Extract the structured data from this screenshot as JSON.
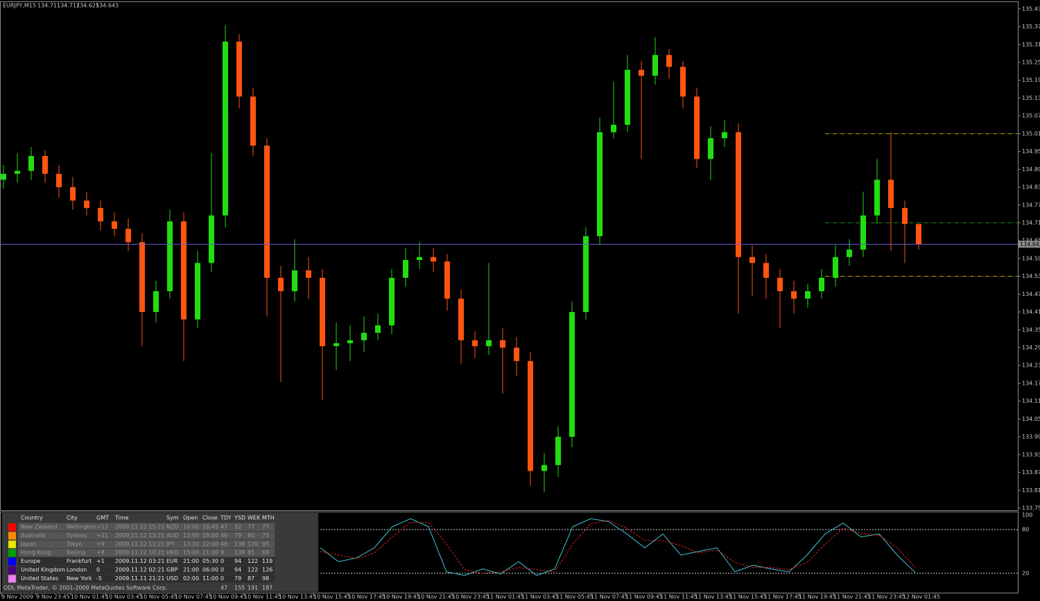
{
  "chart_data": [
    {
      "type": "candlestick",
      "title": "EURJPY,M15",
      "open": [
        134.86,
        134.88,
        134.89,
        134.94,
        134.88,
        134.835,
        134.79,
        134.765,
        134.72,
        134.695,
        134.65,
        134.415,
        134.485,
        134.72,
        134.39,
        134.58,
        134.74,
        135.325,
        135.14,
        134.975,
        134.53,
        134.485,
        134.555,
        134.53,
        134.3,
        134.31,
        134.32,
        134.345,
        134.37,
        134.53,
        134.59,
        134.6,
        134.585,
        134.46,
        134.32,
        134.3,
        134.32,
        134.295,
        134.25,
        133.88,
        133.9,
        133.995,
        134.415,
        134.67,
        135.02,
        135.045,
        135.23,
        135.21,
        135.28,
        135.24,
        135.14,
        134.93,
        135.0,
        135.02,
        134.6,
        134.58,
        134.53,
        134.485,
        134.46,
        134.485,
        134.53,
        134.6,
        134.625,
        134.74,
        134.86,
        134.765,
        134.711
      ],
      "high": [
        134.91,
        134.95,
        134.97,
        134.96,
        134.91,
        134.87,
        134.82,
        134.79,
        134.75,
        134.73,
        134.68,
        134.52,
        134.76,
        134.75,
        134.62,
        134.95,
        135.38,
        135.35,
        135.17,
        135.0,
        134.57,
        134.66,
        134.6,
        134.56,
        134.38,
        134.37,
        134.4,
        134.41,
        134.56,
        134.63,
        134.65,
        134.63,
        134.61,
        134.49,
        134.35,
        134.58,
        134.36,
        134.33,
        134.28,
        133.94,
        134.03,
        134.45,
        134.7,
        135.07,
        135.19,
        135.28,
        135.26,
        135.34,
        135.3,
        135.26,
        135.17,
        135.04,
        135.06,
        135.05,
        134.64,
        134.61,
        134.56,
        134.52,
        134.51,
        134.56,
        134.64,
        134.66,
        134.82,
        134.93,
        135.02,
        134.79,
        134.712
      ],
      "low": [
        134.83,
        134.85,
        134.86,
        134.85,
        134.8,
        134.76,
        134.74,
        134.69,
        134.67,
        134.62,
        134.3,
        134.38,
        134.46,
        134.25,
        134.36,
        134.55,
        134.7,
        135.1,
        134.94,
        134.4,
        134.18,
        134.45,
        134.46,
        134.12,
        134.22,
        134.25,
        134.28,
        134.32,
        134.34,
        134.5,
        134.56,
        134.55,
        134.42,
        134.24,
        134.26,
        134.27,
        134.14,
        134.2,
        133.83,
        133.81,
        133.86,
        133.96,
        134.39,
        134.64,
        135.0,
        135.02,
        134.93,
        135.18,
        135.2,
        135.1,
        134.9,
        134.86,
        134.97,
        134.41,
        134.47,
        134.46,
        134.36,
        134.41,
        134.43,
        134.46,
        134.5,
        134.57,
        134.6,
        134.71,
        134.62,
        134.58,
        134.625
      ],
      "close": [
        134.88,
        134.89,
        134.94,
        134.88,
        134.835,
        134.79,
        134.765,
        134.72,
        134.695,
        134.65,
        134.415,
        134.485,
        134.72,
        134.39,
        134.58,
        134.74,
        135.325,
        135.14,
        134.975,
        134.53,
        134.485,
        134.555,
        134.53,
        134.3,
        134.31,
        134.32,
        134.345,
        134.37,
        134.53,
        134.59,
        134.6,
        134.585,
        134.46,
        134.32,
        134.3,
        134.32,
        134.295,
        134.25,
        133.88,
        133.9,
        133.995,
        134.415,
        134.67,
        135.02,
        135.045,
        135.23,
        135.21,
        135.28,
        135.24,
        135.14,
        134.93,
        135.0,
        135.02,
        134.6,
        134.58,
        134.53,
        134.485,
        134.46,
        134.485,
        134.53,
        134.6,
        134.625,
        134.74,
        134.86,
        134.765,
        134.711,
        134.643
      ],
      "colors": {
        "up": "#22dd11",
        "down": "#ff5511",
        "price_line": "#6a5acd"
      },
      "ylim": [
        133.748,
        135.458
      ],
      "yticks": [
        135.435,
        135.375,
        135.315,
        135.255,
        135.195,
        135.135,
        135.075,
        135.015,
        134.955,
        134.895,
        134.835,
        134.775,
        134.715,
        134.655,
        134.595,
        134.535,
        134.475,
        134.415,
        134.355,
        134.295,
        134.235,
        134.175,
        134.115,
        134.055,
        133.995,
        133.935,
        133.875,
        133.815,
        133.755
      ],
      "levels": [
        {
          "value": 135.015,
          "color": "#c8b400"
        },
        {
          "value": 134.715,
          "color": "#1a8a1a"
        },
        {
          "value": 134.535,
          "color": "#c8b400"
        }
      ],
      "time_labels": [
        "9 Nov 2009",
        "9 Nov 23:45",
        "10 Nov 01:45",
        "10 Nov 03:45",
        "10 Nov 05:45",
        "10 Nov 07:45",
        "10 Nov 09:45",
        "10 Nov 11:45",
        "10 Nov 13:45",
        "10 Nov 15:45",
        "10 Nov 17:45",
        "10 Nov 19:45",
        "10 Nov 21:45",
        "10 Nov 23:45",
        "11 Nov 01:45",
        "11 Nov 03:45",
        "11 Nov 05:45",
        "11 Nov 07:45",
        "11 Nov 09:45",
        "11 Nov 11:45",
        "11 Nov 13:45",
        "11 Nov 15:45",
        "11 Nov 17:45",
        "11 Nov 19:45",
        "11 Nov 21:45",
        "11 Nov 23:45",
        "12 Nov 01:45"
      ]
    },
    {
      "type": "line",
      "ylim": [
        0,
        100
      ],
      "yticks": [
        20,
        80,
        100
      ],
      "levels": [
        20,
        80
      ],
      "series": [
        {
          "color": "#40c8d8",
          "values": [
            55,
            36,
            41,
            55,
            84,
            95,
            84,
            22,
            17,
            26,
            19,
            36,
            17,
            26,
            84,
            95,
            91,
            74,
            55,
            74,
            45,
            50,
            55,
            22,
            31,
            26,
            22,
            45,
            74,
            89,
            70,
            74,
            45,
            21
          ]
        },
        {
          "color": "#dd2222",
          "values": [
            50,
            45,
            40,
            48,
            70,
            90,
            90,
            60,
            25,
            20,
            22,
            28,
            25,
            22,
            60,
            88,
            93,
            82,
            65,
            65,
            58,
            48,
            52,
            35,
            28,
            28,
            25,
            35,
            60,
            82,
            75,
            72,
            55,
            28
          ]
        }
      ]
    }
  ],
  "table": {
    "columns": [
      "Country",
      "City",
      "GMT",
      "Time",
      "Sym",
      "Open",
      "Close",
      "TDY",
      "YSD",
      "WEK",
      "MTH"
    ],
    "rows": [
      {
        "color": "#ff0000",
        "cells": [
          "New Zealand",
          "Wellington",
          "+13",
          "2009.11.12 15:21",
          "NZD",
          "10:00",
          "16:45",
          "47",
          "52",
          "77",
          "77"
        ]
      },
      {
        "color": "#ff8c00",
        "cells": [
          "Australia",
          "Sydney",
          "+11",
          "2009.11.12 13:21",
          "AUD",
          "12:00",
          "18:00",
          "46",
          "79",
          "80",
          "75"
        ]
      },
      {
        "color": "#e8e800",
        "cells": [
          "Japan",
          "Tokyo",
          "+9",
          "2009.11.12 11:21",
          "JPY",
          "13:30",
          "22:00",
          "46",
          "138",
          "120",
          "95"
        ]
      },
      {
        "color": "#00a000",
        "cells": [
          "Hong Kong",
          "Beijing",
          "+8",
          "2009.11.12 10:21",
          "HKD",
          "15:00",
          "21:00",
          "9",
          "138",
          "85",
          "69"
        ]
      },
      {
        "color": "#0000ff",
        "cells": [
          "Europe",
          "Frankfurt",
          "+1",
          "2009.11.12 03:21",
          "EUR",
          "21:00",
          "05:30",
          "0",
          "94",
          "122",
          "119"
        ]
      },
      {
        "color": "#4b0082",
        "cells": [
          "United Kingdom",
          "London",
          "0",
          "2009.11.12 02:21",
          "GBP",
          "21:00",
          "06:00",
          "0",
          "94",
          "122",
          "126"
        ]
      },
      {
        "color": "#ee82ee",
        "cells": [
          "United States",
          "New York",
          "-5",
          "2009.11.11 21:21",
          "USD",
          "02:00",
          "11:00",
          "0",
          "79",
          "87",
          "98"
        ]
      }
    ],
    "totals": [
      "47",
      "155",
      "191",
      "187"
    ],
    "footer": "ODL MetaTrader, © 2001-2009 MetaQuotes Software Corp."
  }
}
